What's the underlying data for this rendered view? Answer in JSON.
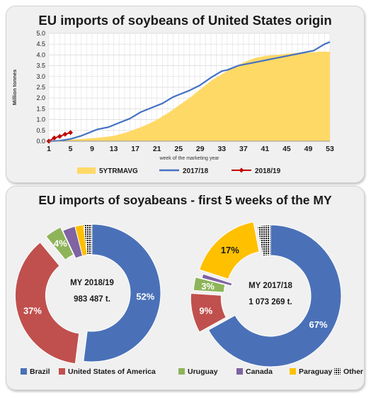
{
  "colors": {
    "avg_fill": "#ffd966",
    "line_2017": "#4472c4",
    "line_2018": "#c00000",
    "brazil": "#4a71b8",
    "usa": "#c0504d",
    "uruguay": "#8eb45a",
    "canada": "#7f63a3",
    "paraguay": "#ffc000",
    "other": "#1a1a1a"
  },
  "chart_data": [
    {
      "type": "line",
      "title": "EU imports of soybeans of United States origin",
      "xlabel": "week of the marketing year",
      "ylabel": "Million tonnes",
      "ylim": [
        0,
        5.0
      ],
      "xlim": [
        1,
        53
      ],
      "y_ticks": [
        "0.0",
        "0.5",
        "1.0",
        "1.5",
        "2.0",
        "2.5",
        "3.0",
        "3.5",
        "4.0",
        "4.5",
        "5.0"
      ],
      "x_ticks": [
        "1",
        "5",
        "9",
        "13",
        "17",
        "21",
        "25",
        "29",
        "33",
        "37",
        "41",
        "45",
        "49",
        "53"
      ],
      "grid": true,
      "legend_position": "bottom",
      "series": [
        {
          "name": "5YTRMAVG",
          "style": "area",
          "x": [
            1,
            3,
            5,
            7,
            9,
            11,
            13,
            15,
            17,
            19,
            21,
            23,
            25,
            27,
            29,
            31,
            33,
            35,
            37,
            39,
            41,
            43,
            45,
            47,
            49,
            51,
            53
          ],
          "values": [
            0.0,
            0.03,
            0.07,
            0.1,
            0.14,
            0.18,
            0.25,
            0.38,
            0.55,
            0.75,
            1.0,
            1.3,
            1.65,
            2.0,
            2.4,
            2.8,
            3.1,
            3.4,
            3.65,
            3.85,
            3.95,
            4.0,
            4.05,
            4.1,
            4.1,
            4.15,
            4.15
          ]
        },
        {
          "name": "2017/18",
          "style": "line",
          "x": [
            1,
            3,
            5,
            7,
            9,
            10,
            12,
            14,
            16,
            17,
            18,
            20,
            22,
            24,
            25,
            27,
            29,
            31,
            33,
            34,
            36,
            38,
            40,
            42,
            44,
            46,
            48,
            50,
            52,
            53
          ],
          "values": [
            0.0,
            0.02,
            0.1,
            0.25,
            0.45,
            0.55,
            0.65,
            0.85,
            1.05,
            1.2,
            1.35,
            1.55,
            1.75,
            2.05,
            2.15,
            2.35,
            2.6,
            2.95,
            3.25,
            3.3,
            3.5,
            3.6,
            3.7,
            3.8,
            3.9,
            4.0,
            4.1,
            4.2,
            4.5,
            4.6
          ]
        },
        {
          "name": "2018/19",
          "style": "line-markers",
          "x": [
            1,
            2,
            3,
            4,
            5
          ],
          "values": [
            0.0,
            0.15,
            0.22,
            0.32,
            0.4
          ]
        }
      ]
    },
    {
      "type": "pie",
      "title": "EU imports of soyabeans - first 5 weeks of the MY",
      "charts": [
        {
          "center_label": "MY 2018/19",
          "center_value": "983 487 t.",
          "slices": [
            {
              "name": "Brazil",
              "value": 52,
              "label": "52%"
            },
            {
              "name": "United States of America",
              "value": 37,
              "label": "37%"
            },
            {
              "name": "Uruguay",
              "value": 4,
              "label": "4%"
            },
            {
              "name": "Canada",
              "value": 3,
              "label": ""
            },
            {
              "name": "Paraguay",
              "value": 2,
              "label": ""
            },
            {
              "name": "Other",
              "value": 2,
              "label": ""
            }
          ]
        },
        {
          "center_label": "MY 2017/18",
          "center_value": "1 073 269 t.",
          "slices": [
            {
              "name": "Brazil",
              "value": 67,
              "label": "67%"
            },
            {
              "name": "United States of America",
              "value": 9,
              "label": "9%"
            },
            {
              "name": "Uruguay",
              "value": 3,
              "label": "3%"
            },
            {
              "name": "Canada",
              "value": 1,
              "label": ""
            },
            {
              "name": "Paraguay",
              "value": 17,
              "label": "17%"
            },
            {
              "name": "Other",
              "value": 3,
              "label": ""
            }
          ]
        }
      ],
      "legend": [
        "Brazil",
        "United States of America",
        "Uruguay",
        "Canada",
        "Paraguay",
        "Other"
      ]
    }
  ]
}
